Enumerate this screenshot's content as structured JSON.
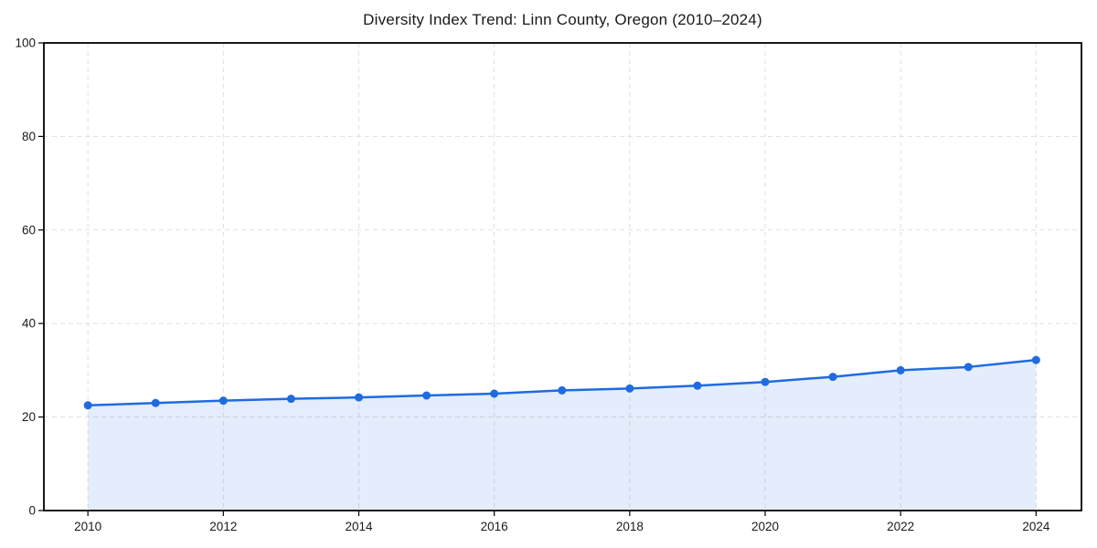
{
  "chart_data": {
    "type": "area",
    "title": "Diversity Index Trend: Linn County, Oregon (2010–2024)",
    "x": [
      2010,
      2011,
      2012,
      2013,
      2014,
      2015,
      2016,
      2017,
      2018,
      2019,
      2020,
      2021,
      2022,
      2023,
      2024
    ],
    "values": [
      22.5,
      23.0,
      23.5,
      23.9,
      24.2,
      24.6,
      25.0,
      25.7,
      26.1,
      26.7,
      27.5,
      28.6,
      30.0,
      30.7,
      32.2
    ],
    "xlabel": "",
    "ylabel": "",
    "ylim": [
      0,
      100
    ],
    "xlim": [
      2009.35,
      2024.67
    ],
    "yticks": [
      0,
      20,
      40,
      60,
      80,
      100
    ],
    "xticks": [
      2010,
      2012,
      2014,
      2016,
      2018,
      2020,
      2022,
      2024
    ],
    "grid": {
      "style": "dashed",
      "color": "#e0e0e0"
    },
    "legend": "none",
    "colors": {
      "line": "#1f6be0",
      "marker": "#1f6be0",
      "fill": "#1f6be0",
      "fill_opacity": 0.12,
      "spine": "#000000",
      "text": "#1a1a1a",
      "background": "#ffffff"
    }
  }
}
